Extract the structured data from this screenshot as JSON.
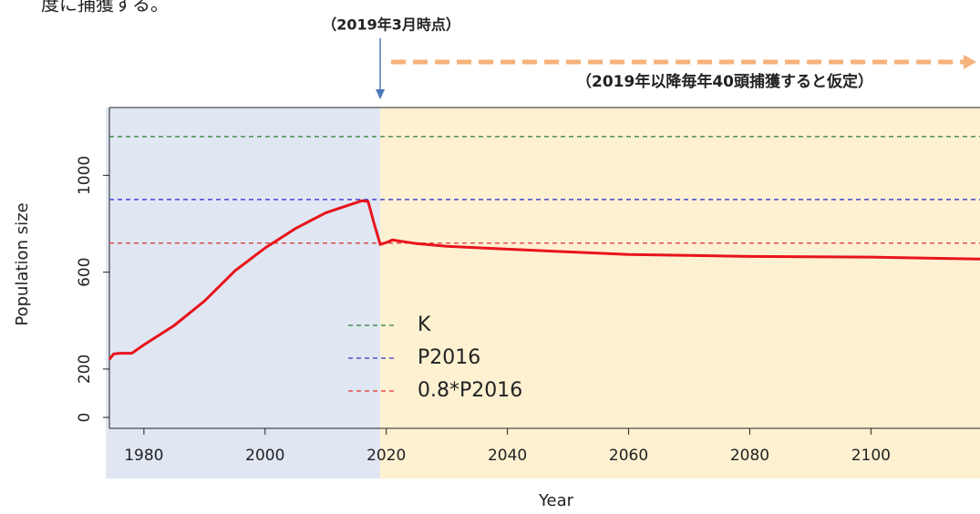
{
  "note": "度に捕獲する。",
  "chart_data": {
    "type": "line",
    "xlabel": "Year",
    "ylabel": "Population size",
    "xlim": [
      1974.3,
      2118
    ],
    "ylim": [
      -45,
      1280
    ],
    "xticks": [
      1980,
      2000,
      2020,
      2040,
      2060,
      2080,
      2100
    ],
    "yticks": [
      0,
      200,
      600,
      1000
    ],
    "event_year": 2019,
    "region_colors": [
      "#e0e7f3",
      "#fdf1d2"
    ],
    "x": [
      1974.3,
      1975,
      1976,
      1978,
      1980,
      1985,
      1990,
      1995,
      2000,
      2005,
      2010,
      2015,
      2016,
      2017,
      2018,
      2019,
      2020,
      2021,
      2025,
      2030,
      2040,
      2050,
      2060,
      2080,
      2100,
      2118
    ],
    "series": [
      {
        "color": "#e8141c",
        "values": [
          240,
          262,
          265,
          265,
          300,
          380,
          481,
          605,
          700,
          780,
          845,
          887,
          895,
          892,
          800,
          715,
          722,
          733,
          718,
          707,
          695,
          684,
          673,
          665,
          662,
          654
        ]
      }
    ],
    "reference_lines": [
      {
        "name": "K",
        "value": 1160,
        "color": "#2e7d32"
      },
      {
        "name": "P2016",
        "value": 900,
        "color": "#3535c8"
      },
      {
        "name": "0.8*P2016",
        "value": 720,
        "color": "#e03030"
      }
    ],
    "annotations": [
      {
        "text": "（2019年3月時点）",
        "color": "#2f4f7f"
      },
      {
        "text": "（2019年以降毎年40頭捕獲すると仮定）",
        "color": "#f08a24"
      }
    ]
  }
}
